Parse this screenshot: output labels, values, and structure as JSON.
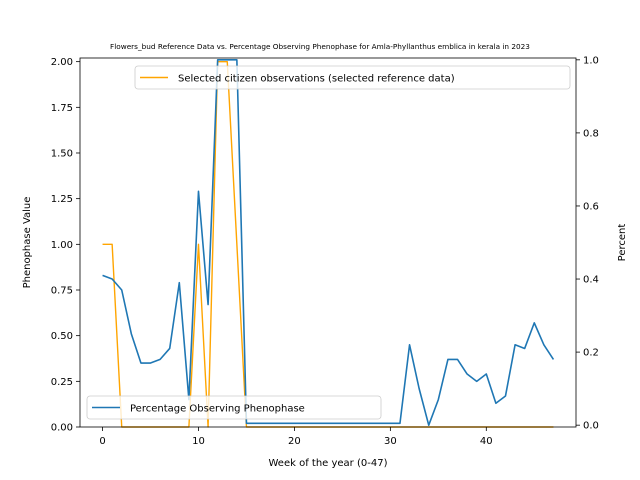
{
  "chart_data": {
    "type": "line",
    "title": "Flowers_bud Reference Data vs. Percentage Observing Phenophase for Amla-Phyllanthus emblica in kerala in 2023",
    "xlabel": "Week of the year (0-47)",
    "ylabel_left": "Phenophase Value",
    "ylabel_right": "Percent",
    "xlim": [
      -2.35,
      49.35
    ],
    "ylim_left": [
      0,
      2.02
    ],
    "ylim_right": [
      -0.005,
      1.005
    ],
    "xticks": [
      0,
      10,
      20,
      30,
      40
    ],
    "yticks_left": [
      0.0,
      0.25,
      0.5,
      0.75,
      1.0,
      1.25,
      1.5,
      1.75,
      2.0
    ],
    "yticks_left_labels": [
      "0.00",
      "0.25",
      "0.50",
      "0.75",
      "1.00",
      "1.25",
      "1.50",
      "1.75",
      "2.00"
    ],
    "yticks_right": [
      0.0,
      0.2,
      0.4,
      0.6,
      0.8,
      1.0
    ],
    "yticks_right_labels": [
      "0.0",
      "0.2",
      "0.4",
      "0.6",
      "0.8",
      "1.0"
    ],
    "legend_top": "top-right",
    "legend_bottom": "bottom-left",
    "grid": false,
    "series": [
      {
        "name": "Selected citizen observations (selected reference data)",
        "axis": "left",
        "color": "#ffa500",
        "x": [
          0,
          1,
          2,
          3,
          4,
          5,
          6,
          7,
          8,
          9,
          10,
          11,
          12,
          13,
          14,
          15,
          16,
          17,
          18,
          19,
          20,
          21,
          22,
          23,
          24,
          25,
          26,
          27,
          28,
          29,
          30,
          31,
          32,
          33,
          34,
          35,
          36,
          37,
          38,
          39,
          40,
          41,
          42,
          43,
          44,
          45,
          46,
          47
        ],
        "values": [
          1,
          1,
          0,
          0,
          0,
          0,
          0,
          0,
          0,
          0,
          1,
          0,
          2,
          2,
          1,
          0,
          0,
          0,
          0,
          0,
          0,
          0,
          0,
          0,
          0,
          0,
          0,
          0,
          0,
          0,
          0,
          0,
          0,
          0,
          0,
          0,
          0,
          0,
          0,
          0,
          0,
          0,
          0,
          0,
          0,
          0,
          0,
          0
        ]
      },
      {
        "name": "Percentage Observing Phenophase",
        "axis": "right",
        "color": "#1f77b4",
        "x": [
          0,
          1,
          2,
          3,
          4,
          5,
          6,
          7,
          8,
          9,
          10,
          11,
          12,
          13,
          14,
          15,
          16,
          17,
          18,
          19,
          20,
          21,
          22,
          23,
          24,
          25,
          26,
          27,
          28,
          29,
          30,
          31,
          32,
          33,
          34,
          35,
          36,
          37,
          38,
          39,
          40,
          41,
          42,
          43,
          44,
          45,
          46,
          47
        ],
        "values": [
          0.41,
          0.4,
          0.37,
          0.25,
          0.17,
          0.17,
          0.18,
          0.21,
          0.39,
          0.07,
          0.64,
          0.33,
          1.0,
          1.0,
          1.0,
          0.005,
          0.005,
          0.005,
          0.005,
          0.005,
          0.005,
          0.005,
          0.005,
          0.005,
          0.005,
          0.005,
          0.005,
          0.005,
          0.005,
          0.005,
          0.005,
          0.005,
          0.22,
          0.1,
          0.0,
          0.07,
          0.18,
          0.18,
          0.14,
          0.12,
          0.14,
          0.06,
          0.08,
          0.22,
          0.21,
          0.28,
          0.22,
          0.18
        ]
      }
    ]
  }
}
